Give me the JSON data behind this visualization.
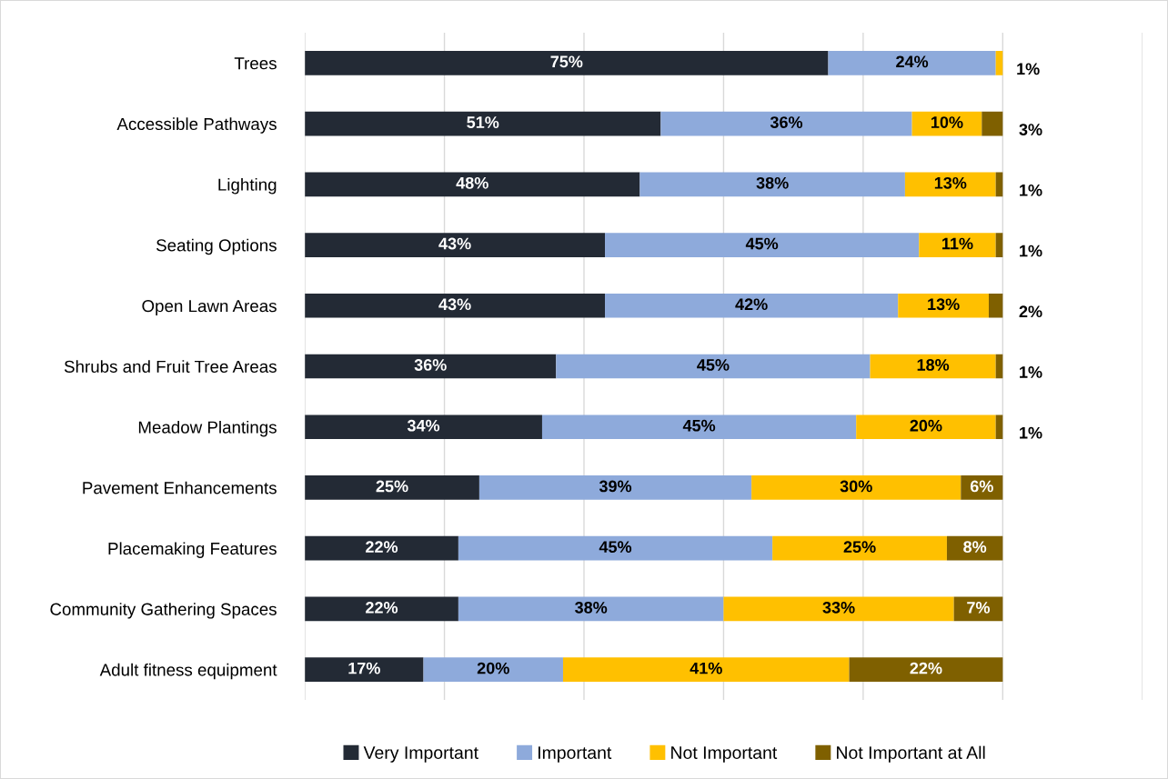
{
  "chart_data": {
    "type": "bar",
    "orientation": "horizontal",
    "stacked": true,
    "categories": [
      "Trees",
      "Accessible Pathways",
      "Lighting",
      "Seating Options",
      "Open Lawn Areas",
      "Shrubs and Fruit Tree Areas",
      "Meadow Plantings",
      "Pavement Enhancements",
      "Placemaking Features",
      "Community Gathering Spaces",
      "Adult fitness equipment"
    ],
    "series": [
      {
        "name": "Very Important",
        "color": "#232a35",
        "values": [
          75,
          51,
          48,
          43,
          43,
          36,
          34,
          25,
          22,
          22,
          17
        ],
        "value_labels": [
          "75%",
          "51%",
          "48%",
          "43%",
          "43%",
          "36%",
          "34%",
          "25%",
          "22%",
          "22%",
          "17%"
        ]
      },
      {
        "name": "Important",
        "color": "#8eaadb",
        "values": [
          24,
          36,
          38,
          45,
          42,
          45,
          45,
          39,
          45,
          38,
          20
        ],
        "value_labels": [
          "24%",
          "36%",
          "38%",
          "45%",
          "42%",
          "45%",
          "45%",
          "39%",
          "45%",
          "38%",
          "20%"
        ]
      },
      {
        "name": "Not Important",
        "color": "#ffc000",
        "values": [
          1,
          10,
          13,
          11,
          13,
          18,
          20,
          30,
          25,
          33,
          41
        ],
        "value_labels": [
          "1%",
          "10%",
          "13%",
          "11%",
          "13%",
          "18%",
          "20%",
          "30%",
          "25%",
          "33%",
          "41%"
        ]
      },
      {
        "name": "Not Important at All",
        "color": "#7f6000",
        "values": [
          0,
          3,
          1,
          1,
          2,
          1,
          1,
          6,
          8,
          7,
          22
        ],
        "value_labels": [
          null,
          "3%",
          "1%",
          "1%",
          "2%",
          "1%",
          "1%",
          "6%",
          "8%",
          "7%",
          "22%"
        ]
      }
    ],
    "xlim": [
      0,
      120
    ],
    "xticks": [
      {
        "value": 0,
        "label": null
      },
      {
        "value": 20,
        "label": null
      },
      {
        "value": 40,
        "label": null
      },
      {
        "value": 60,
        "label": null
      },
      {
        "value": 80,
        "label": null
      },
      {
        "value": 100,
        "label": null
      },
      {
        "value": 120,
        "label": null
      }
    ],
    "grid": "x",
    "legend": "bottom"
  }
}
